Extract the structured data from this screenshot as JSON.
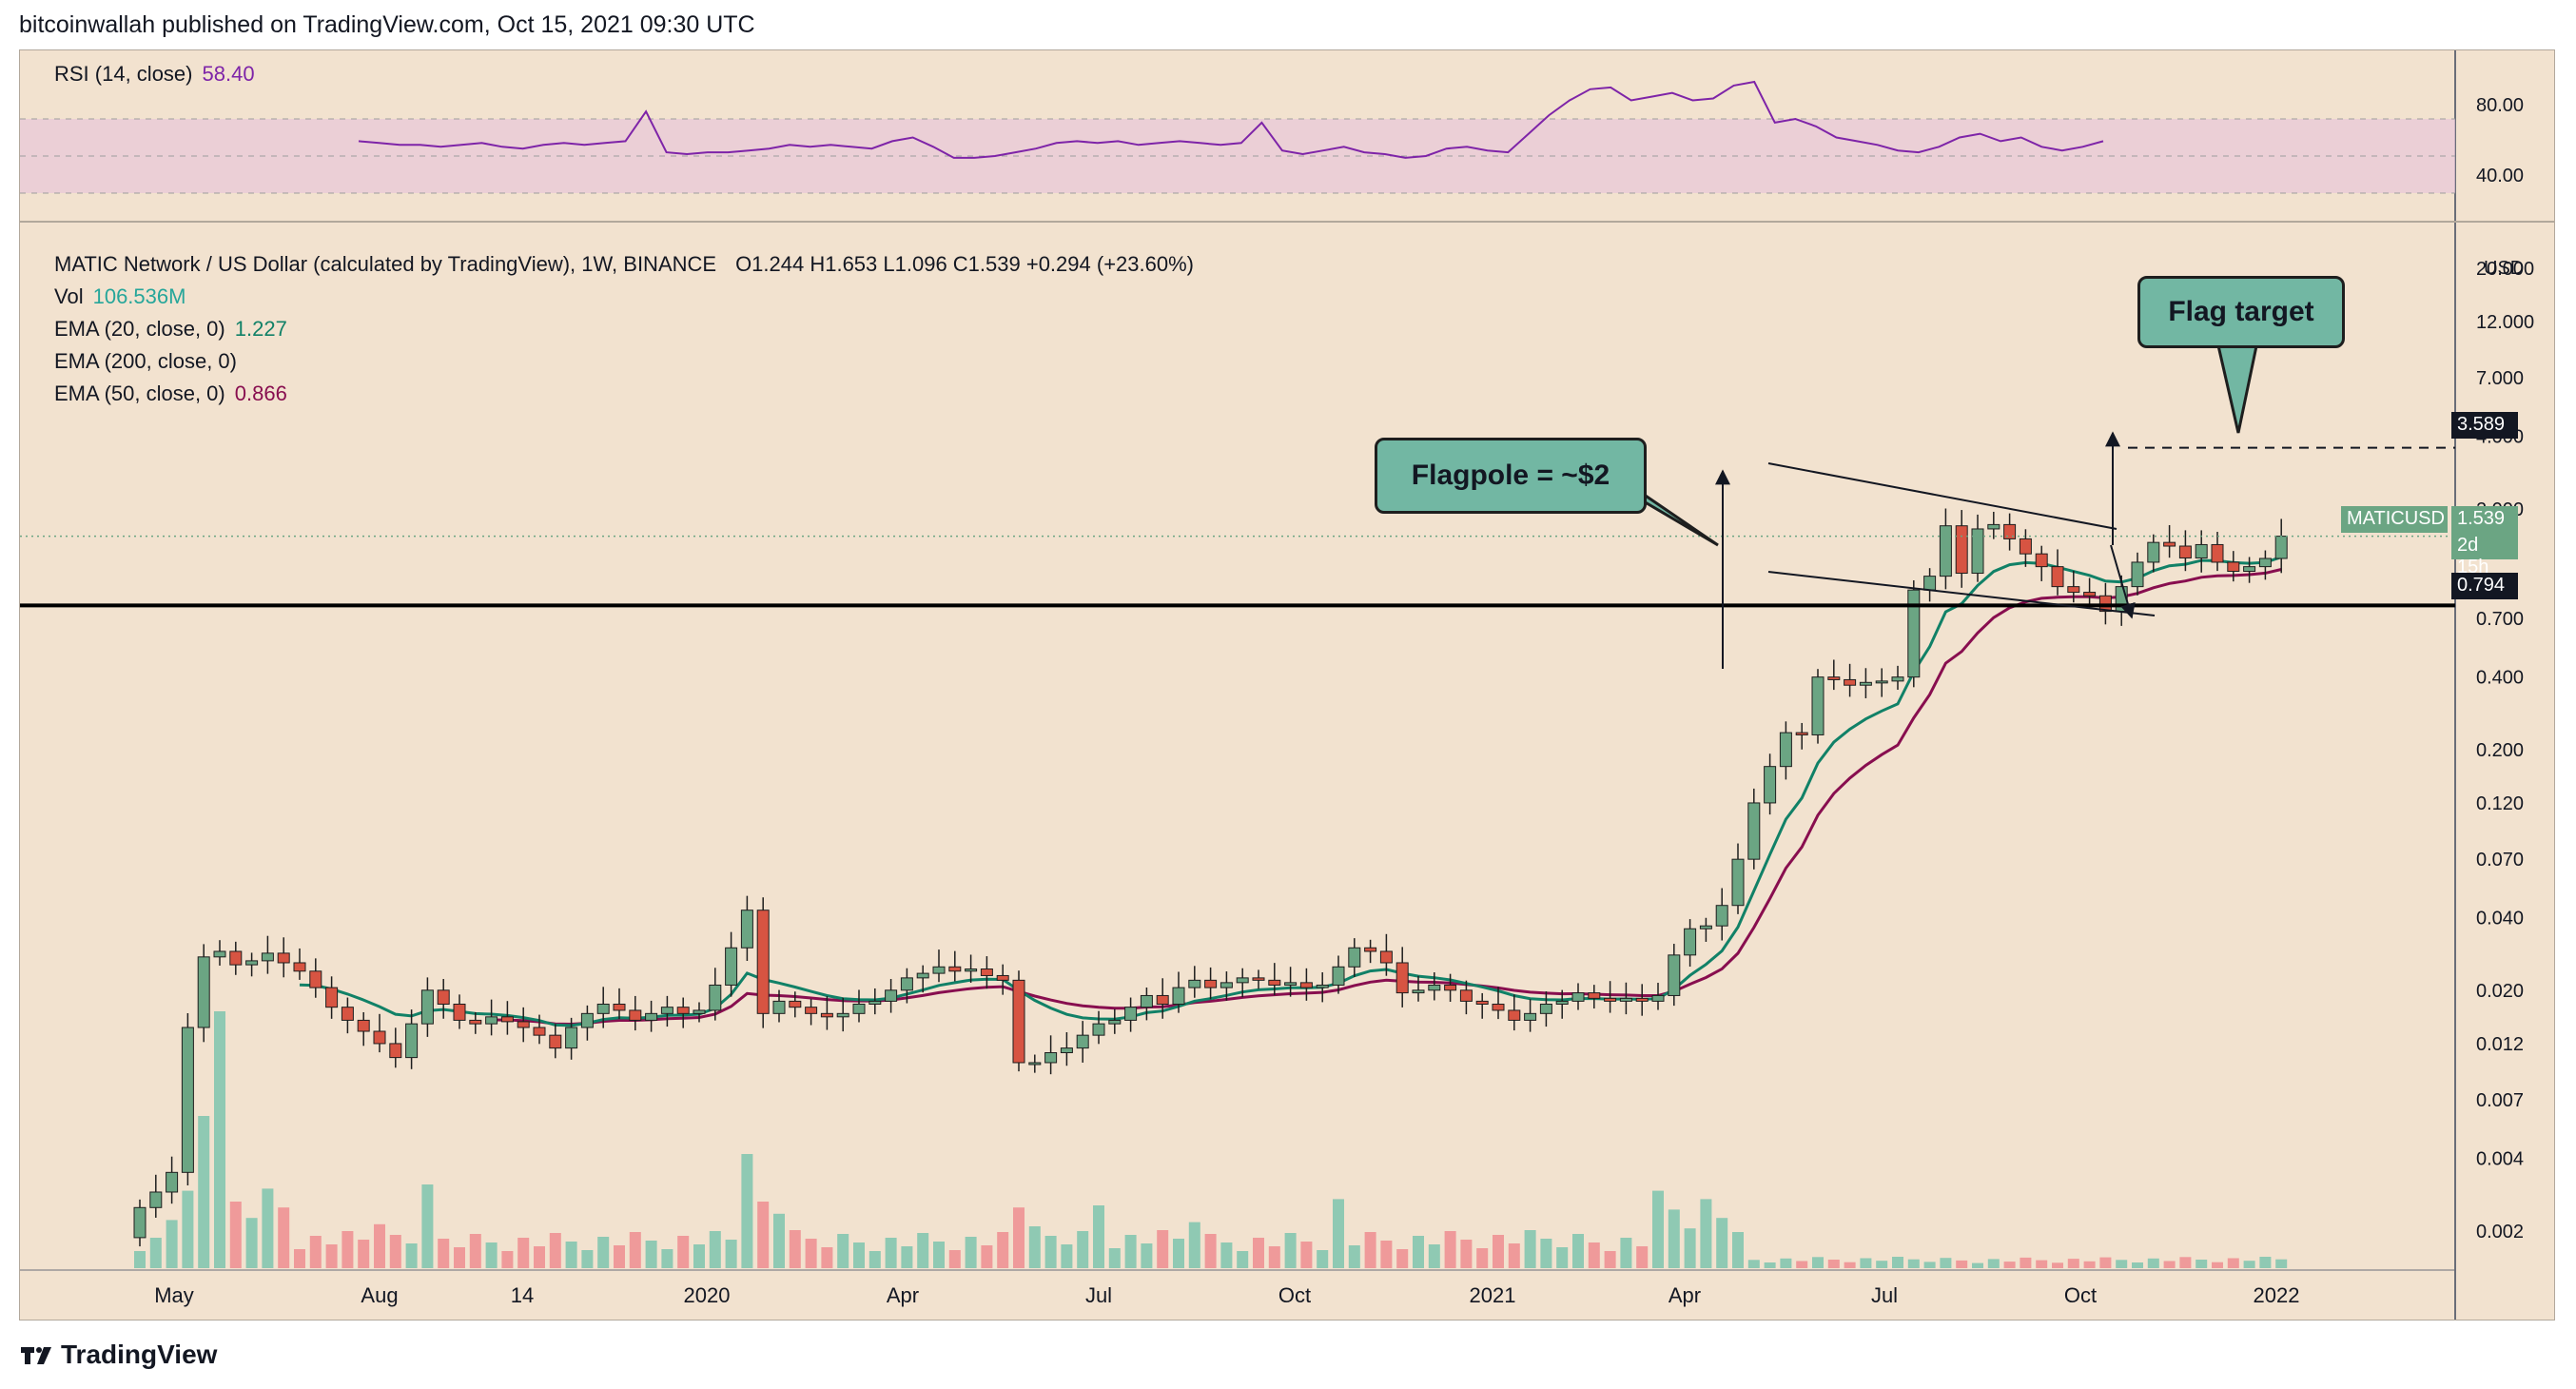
{
  "header": {
    "publisher": "bitcoinwallah published on TradingView.com, Oct 15, 2021 09:30 UTC"
  },
  "footer": {
    "brand": "TradingView"
  },
  "rsi": {
    "label": "RSI (14, close)",
    "value": "58.40",
    "axis_ticks": [
      "80.00",
      "40.00"
    ],
    "upper_band": 70,
    "lower_band": 30,
    "mid_band": 50,
    "line_color": "#7e24a8",
    "band_color": "#e8c8d8"
  },
  "legend": {
    "symbol": "MATIC Network / US Dollar (calculated by TradingView), 1W, BINANCE",
    "ohlc": "O1.244  H1.653  L1.096  C1.539  +0.294 (+23.60%)",
    "vol_label": "Vol",
    "vol_value": "106.536M",
    "ema20_label": "EMA (20, close, 0)",
    "ema20_value": "1.227",
    "ema200_label": "EMA (200, close, 0)",
    "ema50_label": "EMA (50, close, 0)",
    "ema50_value": "0.866"
  },
  "price_axis": {
    "ticks": [
      "20.000",
      "12.000",
      "7.000",
      "4.000",
      "2.000",
      "0.700",
      "0.400",
      "0.200",
      "0.120",
      "0.070",
      "0.040",
      "0.020",
      "0.012",
      "0.007",
      "0.004",
      "0.002"
    ],
    "currency": "USD",
    "scale": "log"
  },
  "time_axis": {
    "labels": [
      "May",
      "Aug",
      "14",
      "2020",
      "Apr",
      "Jul",
      "Oct",
      "2021",
      "Apr",
      "Jul",
      "Oct",
      "2022"
    ]
  },
  "price_labels": {
    "flag_target": "3.589",
    "symbol": "MATICUSD",
    "last": "1.539",
    "countdown": "2d 15h",
    "support": "0.794"
  },
  "annotations": {
    "flagpole": "Flagpole = ~$2",
    "flag_target": "Flag target"
  },
  "colors": {
    "up": "#6ba583",
    "down": "#d75442",
    "ema20": "#118167",
    "ema50": "#880e4f",
    "vol_up": "#8fc9b3",
    "vol_down": "#ef9a9a"
  },
  "chart_data": {
    "type": "candlestick",
    "title": "MATIC Network / US Dollar (calculated by TradingView), 1W, BINANCE",
    "x_range": [
      "2019-04",
      "2022-01"
    ],
    "y_scale": "log",
    "ylim": [
      0.0014,
      26
    ],
    "close_series": [
      0.0025,
      0.0029,
      0.0035,
      0.014,
      0.0275,
      0.029,
      0.0255,
      0.0265,
      0.0285,
      0.026,
      0.024,
      0.0205,
      0.017,
      0.015,
      0.0135,
      0.012,
      0.0105,
      0.0145,
      0.02,
      0.0175,
      0.015,
      0.0145,
      0.0155,
      0.0148,
      0.014,
      0.013,
      0.0115,
      0.014,
      0.016,
      0.0175,
      0.0165,
      0.015,
      0.016,
      0.017,
      0.016,
      0.0165,
      0.021,
      0.03,
      0.043,
      0.016,
      0.018,
      0.017,
      0.016,
      0.0155,
      0.016,
      0.0175,
      0.018,
      0.02,
      0.0225,
      0.0235,
      0.025,
      0.024,
      0.0245,
      0.023,
      0.022,
      0.01,
      0.01,
      0.011,
      0.0115,
      0.013,
      0.0145,
      0.015,
      0.017,
      0.019,
      0.0175,
      0.0205,
      0.022,
      0.0205,
      0.0215,
      0.0225,
      0.022,
      0.021,
      0.0215,
      0.0205,
      0.021,
      0.025,
      0.03,
      0.029,
      0.026,
      0.0195,
      0.02,
      0.021,
      0.02,
      0.018,
      0.0175,
      0.0165,
      0.015,
      0.016,
      0.0175,
      0.018,
      0.0195,
      0.0185,
      0.018,
      0.0185,
      0.018,
      0.019,
      0.028,
      0.036,
      0.037,
      0.045,
      0.07,
      0.12,
      0.17,
      0.235,
      0.23,
      0.4,
      0.39,
      0.37,
      0.38,
      0.385,
      0.4,
      0.92,
      1.05,
      1.7,
      1.08,
      1.65,
      1.72,
      1.5,
      1.3,
      1.15,
      0.95,
      0.9,
      0.87,
      0.75,
      0.95,
      1.2,
      1.45,
      1.4,
      1.25,
      1.42,
      1.2,
      1.1,
      1.15,
      1.244,
      1.539
    ],
    "ema20": {
      "name": "EMA (20, close, 0)",
      "value": 1.227
    },
    "ema50": {
      "name": "EMA (50, close, 0)",
      "value": 0.866
    },
    "volume_last": "106.536M",
    "levels": [
      {
        "label": "0.794",
        "value": 0.794
      },
      {
        "label": "3.589",
        "value": 3.589
      }
    ],
    "rsi_series": [
      58,
      57,
      56,
      56,
      55,
      56,
      57,
      55,
      54,
      56,
      57,
      56,
      57,
      58,
      74,
      52,
      51,
      52,
      52,
      53,
      54,
      56,
      55,
      56,
      55,
      54,
      58,
      60,
      55,
      49,
      49,
      50,
      52,
      54,
      57,
      58,
      57,
      58,
      56,
      57,
      58,
      57,
      56,
      57,
      68,
      53,
      51,
      53,
      55,
      52,
      51,
      49,
      50,
      54,
      55,
      53,
      52,
      62,
      72,
      80,
      86,
      87,
      80,
      82,
      84,
      80,
      81,
      88,
      90,
      68,
      70,
      66,
      60,
      58,
      56,
      53,
      52,
      55,
      60,
      62,
      58,
      60,
      55,
      53,
      55,
      58
    ]
  }
}
